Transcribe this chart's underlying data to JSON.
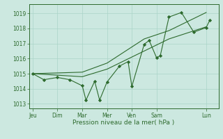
{
  "bg_color": "#cce8e0",
  "grid_color": "#aad4c8",
  "line_color": "#2d6a2d",
  "marker_color": "#2d6a2d",
  "axis_label_color": "#2d6a2d",
  "tick_color": "#2d6a2d",
  "xlabel": "Pression niveau de la mer( hPa )",
  "ylim": [
    1012.7,
    1019.6
  ],
  "yticks": [
    1013,
    1014,
    1015,
    1016,
    1017,
    1018,
    1019
  ],
  "day_labels": [
    "Jeu",
    "Dim",
    "Mar",
    "Mer",
    "Ven",
    "Sam",
    "Lun"
  ],
  "day_positions": [
    0,
    1,
    2,
    3,
    4,
    5,
    7
  ],
  "xlim": [
    -0.15,
    7.5
  ],
  "series1_x": [
    0,
    0.45,
    1.0,
    1.5,
    2.0,
    2.15,
    2.5,
    2.7,
    3.0,
    3.5,
    3.85,
    4.0,
    4.5,
    4.7,
    5.0,
    5.15,
    5.5,
    6.0,
    6.5,
    7.0,
    7.15
  ],
  "series1_y": [
    1015.0,
    1014.6,
    1014.75,
    1014.6,
    1014.2,
    1013.25,
    1014.5,
    1013.25,
    1014.45,
    1015.5,
    1015.8,
    1014.15,
    1016.95,
    1017.2,
    1016.05,
    1016.2,
    1018.75,
    1019.05,
    1017.75,
    1018.05,
    1018.55
  ],
  "series2_x": [
    0,
    2.0,
    3.0,
    4.5,
    5.5,
    7.0
  ],
  "series2_y": [
    1015.0,
    1014.8,
    1015.3,
    1016.5,
    1017.3,
    1018.1
  ],
  "series3_x": [
    0,
    2.0,
    3.0,
    4.5,
    5.5,
    7.0
  ],
  "series3_y": [
    1015.0,
    1015.1,
    1015.7,
    1017.3,
    1017.85,
    1019.05
  ]
}
